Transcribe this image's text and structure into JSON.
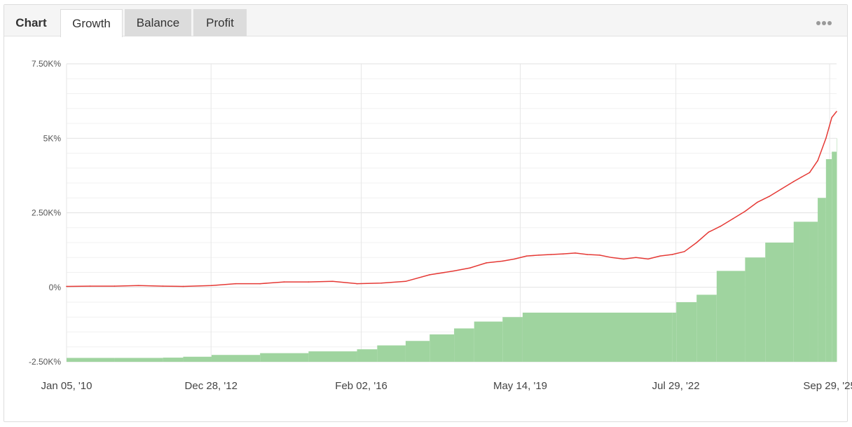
{
  "tabs": {
    "title": "Chart",
    "items": [
      "Growth",
      "Balance",
      "Profit"
    ],
    "active": "Growth"
  },
  "menu_icon": "more-dots-icon",
  "colors": {
    "growth_line": "#e53935",
    "deposit_bars": "#9fd49f",
    "grid": "#e6e6e6"
  },
  "chart_data": {
    "type": "area",
    "ylim": [
      -2500,
      7500
    ],
    "y_ticks": [
      -2500,
      0,
      2500,
      5000,
      7500
    ],
    "y_tick_labels": [
      "-2.50K%",
      "0%",
      "2.50K%",
      "5K%",
      "7.50K%"
    ],
    "x_range": [
      "2010-01-05",
      "2025-11-20"
    ],
    "x_ticks": [
      "2010-01-05",
      "2012-12-28",
      "2016-02-02",
      "2019-05-14",
      "2022-07-29",
      "2025-09-29"
    ],
    "x_tick_labels": [
      "Jan 05, '10",
      "Dec 28, '12",
      "Feb 02, '16",
      "May 14, '19",
      "Jul 29, '22",
      "Sep 29, '25"
    ],
    "grid": true,
    "series": [
      {
        "type": "line",
        "x": [
          "2010-01-05",
          "2010-07-01",
          "2011-01-01",
          "2011-07-01",
          "2012-01-01",
          "2012-06-01",
          "2013-01-01",
          "2013-07-01",
          "2014-01-01",
          "2014-07-01",
          "2015-01-01",
          "2015-07-01",
          "2016-01-01",
          "2016-07-01",
          "2017-01-01",
          "2017-07-01",
          "2018-01-01",
          "2018-05-01",
          "2018-09-01",
          "2019-01-01",
          "2019-04-01",
          "2019-07-01",
          "2019-10-01",
          "2020-01-01",
          "2020-04-01",
          "2020-07-01",
          "2020-10-01",
          "2021-01-01",
          "2021-04-01",
          "2021-07-01",
          "2021-10-01",
          "2022-01-01",
          "2022-04-01",
          "2022-07-01",
          "2022-10-01",
          "2023-01-01",
          "2023-04-01",
          "2023-07-01",
          "2023-10-01",
          "2024-01-01",
          "2024-04-01",
          "2024-07-01",
          "2024-10-01",
          "2025-01-01",
          "2025-03-01",
          "2025-05-01",
          "2025-07-01",
          "2025-09-01",
          "2025-10-15",
          "2025-11-20"
        ],
        "y": [
          30,
          40,
          40,
          60,
          40,
          30,
          60,
          120,
          120,
          180,
          180,
          200,
          120,
          140,
          200,
          420,
          550,
          650,
          820,
          880,
          950,
          1050,
          1080,
          1100,
          1120,
          1150,
          1100,
          1080,
          1000,
          950,
          1000,
          950,
          1050,
          1100,
          1200,
          1500,
          1850,
          2050,
          2300,
          2550,
          2850,
          3050,
          3300,
          3550,
          3700,
          3850,
          4250,
          5000,
          5700,
          5900
        ]
      },
      {
        "type": "bar",
        "x": [
          "2010-01-05",
          "2011-01-01",
          "2012-01-01",
          "2012-06-01",
          "2013-01-01",
          "2014-01-01",
          "2015-01-01",
          "2016-01-01",
          "2016-06-01",
          "2017-01-01",
          "2017-07-01",
          "2018-01-01",
          "2018-06-01",
          "2019-01-01",
          "2019-06-01",
          "2022-07-01",
          "2022-08-01",
          "2023-01-01",
          "2023-06-01",
          "2024-01-01",
          "2024-06-01",
          "2025-01-01",
          "2025-05-01",
          "2025-07-01",
          "2025-09-01",
          "2025-10-15",
          "2025-11-20"
        ],
        "y": [
          -2370,
          -2370,
          -2360,
          -2330,
          -2270,
          -2210,
          -2150,
          -2080,
          -1950,
          -1800,
          -1580,
          -1380,
          -1150,
          -1000,
          -850,
          -850,
          -500,
          -250,
          550,
          1000,
          1500,
          2200,
          2200,
          3000,
          4300,
          4550,
          5000
        ]
      }
    ]
  }
}
